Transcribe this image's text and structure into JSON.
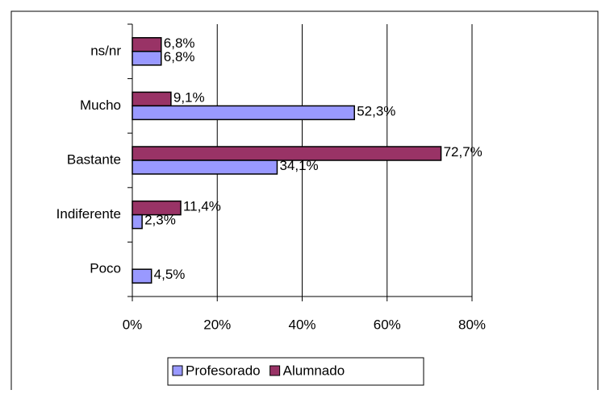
{
  "chart_data": {
    "type": "bar",
    "orientation": "horizontal",
    "categories": [
      "ns/nr",
      "Mucho",
      "Bastante",
      "Indiferente",
      "Poco"
    ],
    "series": [
      {
        "name": "Alumnado",
        "color": "#993366",
        "values": [
          6.8,
          9.1,
          72.7,
          11.4,
          null
        ],
        "value_labels": [
          "6,8%",
          "9,1%",
          "72,7%",
          "11,4%",
          null
        ]
      },
      {
        "name": "Profesorado",
        "color": "#9999ff",
        "values": [
          6.8,
          52.3,
          34.1,
          2.3,
          4.5
        ],
        "value_labels": [
          "6,8%",
          "52,3%",
          "34,1%",
          "2,3%",
          "4,5%"
        ]
      }
    ],
    "xlim": [
      0,
      80
    ],
    "xticks": [
      {
        "value": 0,
        "label": "0%"
      },
      {
        "value": 20,
        "label": "20%"
      },
      {
        "value": 40,
        "label": "40%"
      },
      {
        "value": 60,
        "label": "60%"
      },
      {
        "value": 80,
        "label": "80%"
      }
    ],
    "grid": true,
    "legend": "bottom",
    "legend_order": [
      1,
      0
    ]
  }
}
